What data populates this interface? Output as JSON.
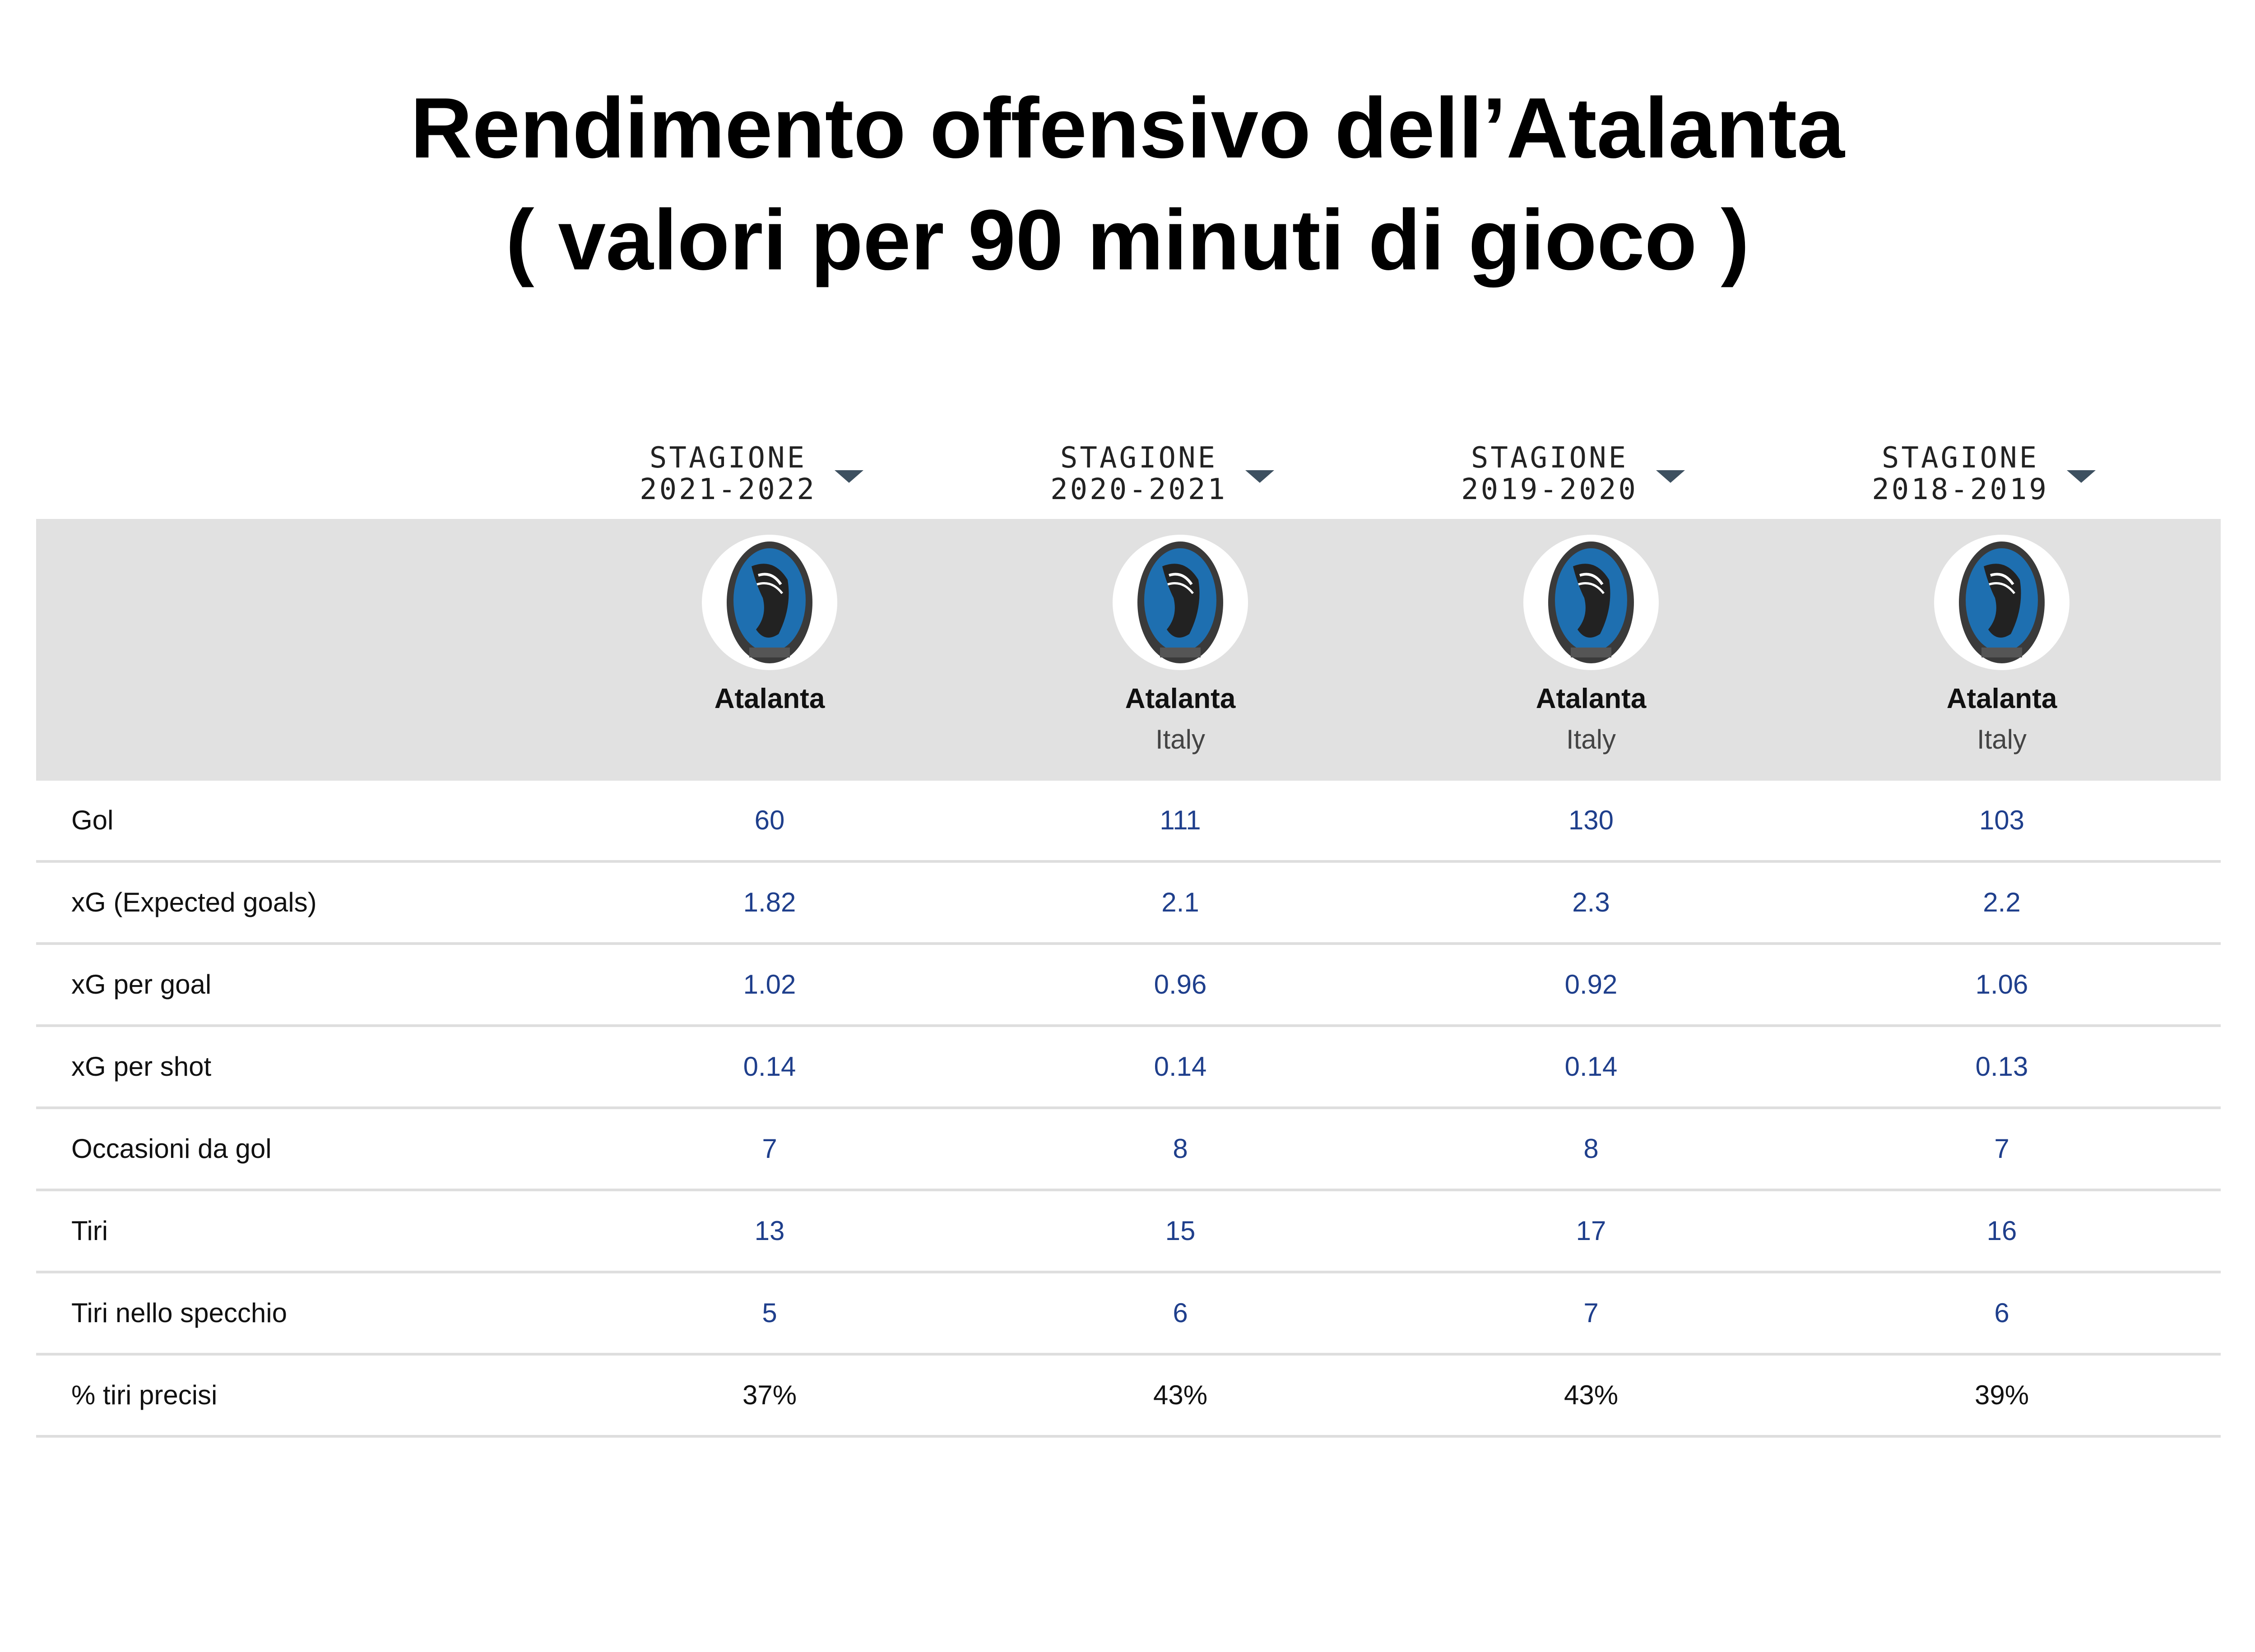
{
  "title": {
    "line1": "Rendimento offensivo dell’Atalanta",
    "line2": "( valori per 90 minuti di gioco )"
  },
  "seasons": [
    {
      "label_top": "STAGIONE",
      "label_bottom": "2021-2022",
      "team": "Atalanta",
      "country": ""
    },
    {
      "label_top": "STAGIONE",
      "label_bottom": "2020-2021",
      "team": "Atalanta",
      "country": "Italy"
    },
    {
      "label_top": "STAGIONE",
      "label_bottom": "2019-2020",
      "team": "Atalanta",
      "country": "Italy"
    },
    {
      "label_top": "STAGIONE",
      "label_bottom": "2018-2019",
      "team": "Atalanta",
      "country": "Italy"
    }
  ],
  "badge": {
    "primary": "#1e6fb0",
    "dark": "#222222",
    "ring": "#3a3a3a"
  },
  "rows": [
    {
      "label": "Gol",
      "values": [
        "60",
        "111",
        "130",
        "103"
      ]
    },
    {
      "label": "xG (Expected goals)",
      "values": [
        "1.82",
        "2.1",
        "2.3",
        "2.2"
      ]
    },
    {
      "label": "xG per goal",
      "values": [
        "1.02",
        "0.96",
        "0.92",
        "1.06"
      ]
    },
    {
      "label": "xG per shot",
      "values": [
        "0.14",
        "0.14",
        "0.14",
        "0.13"
      ]
    },
    {
      "label": "Occasioni da gol",
      "values": [
        "7",
        "8",
        "8",
        "7"
      ]
    },
    {
      "label": "Tiri",
      "values": [
        "13",
        "15",
        "17",
        "16"
      ]
    },
    {
      "label": "Tiri nello specchio",
      "values": [
        "5",
        "6",
        "7",
        "6"
      ]
    },
    {
      "label": "% tiri precisi",
      "values": [
        "37%",
        "43%",
        "43%",
        "39%"
      ]
    }
  ]
}
